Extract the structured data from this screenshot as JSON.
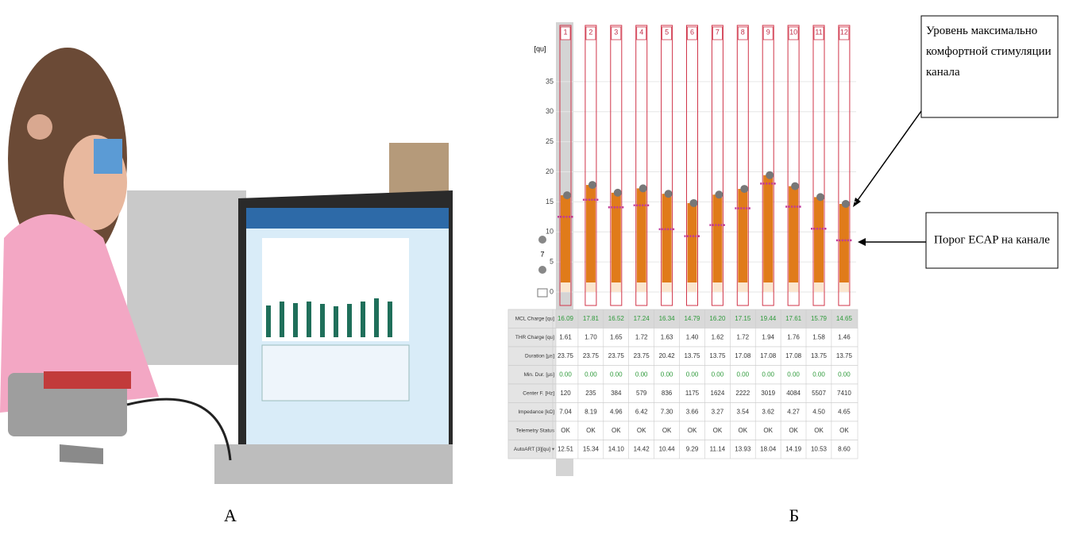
{
  "panels": {
    "left_label": "А",
    "right_label": "Б"
  },
  "annotations": {
    "mcl_note": "Уровень максимально комфортной стимуляции канала",
    "ecap_note": "Порог ECAP на канале"
  },
  "chart_data": {
    "type": "bar",
    "y_label": "[qu]",
    "side_value": "7",
    "categories": [
      "1",
      "2",
      "3",
      "4",
      "5",
      "6",
      "7",
      "8",
      "9",
      "10",
      "11",
      "12"
    ],
    "series": [
      {
        "color": "#e07b1a",
        "values": [
          16.09,
          17.81,
          16.52,
          17.24,
          16.34,
          14.79,
          16.2,
          17.15,
          19.44,
          17.61,
          15.79,
          14.65
        ]
      },
      {
        "color": "#c0399a",
        "values": [
          12.51,
          15.34,
          14.1,
          14.42,
          10.44,
          9.29,
          11.14,
          13.93,
          18.04,
          14.19,
          10.53,
          8.6
        ]
      }
    ],
    "ylim": [
      0,
      40
    ],
    "yticks": [
      0,
      5,
      10,
      15,
      20,
      25,
      30,
      35
    ],
    "grid": true
  },
  "table": {
    "rows": [
      {
        "label": "MCL Charge [qu]",
        "cells": [
          "16.09",
          "17.81",
          "16.52",
          "17.24",
          "16.34",
          "14.79",
          "16.20",
          "17.15",
          "19.44",
          "17.61",
          "15.79",
          "14.65"
        ]
      },
      {
        "label": "THR Charge [qu]",
        "cells": [
          "1.61",
          "1.70",
          "1.65",
          "1.72",
          "1.63",
          "1.40",
          "1.62",
          "1.72",
          "1.94",
          "1.76",
          "1.58",
          "1.46"
        ]
      },
      {
        "label": "Duration [µs]",
        "cells": [
          "23.75",
          "23.75",
          "23.75",
          "23.75",
          "20.42",
          "13.75",
          "13.75",
          "17.08",
          "17.08",
          "17.08",
          "13.75",
          "13.75"
        ]
      },
      {
        "label": "Min. Dur. [µs]",
        "cells": [
          "0.00",
          "0.00",
          "0.00",
          "0.00",
          "0.00",
          "0.00",
          "0.00",
          "0.00",
          "0.00",
          "0.00",
          "0.00",
          "0.00"
        ]
      },
      {
        "label": "Center F. [Hz]",
        "cells": [
          "120",
          "235",
          "384",
          "579",
          "836",
          "1175",
          "1624",
          "2222",
          "3019",
          "4084",
          "5507",
          "7410"
        ]
      },
      {
        "label": "Impedance [kΩ]",
        "cells": [
          "7.04",
          "8.19",
          "4.96",
          "6.42",
          "7.30",
          "3.66",
          "3.27",
          "3.54",
          "3.62",
          "4.27",
          "4.50",
          "4.65"
        ]
      },
      {
        "label": "Telemetry Status",
        "cells": [
          "OK",
          "OK",
          "OK",
          "OK",
          "OK",
          "OK",
          "OK",
          "OK",
          "OK",
          "OK",
          "OK",
          "OK"
        ]
      },
      {
        "label": "AutoART [3][qu] ▾",
        "cells": [
          "12.51",
          "15.34",
          "14.10",
          "14.42",
          "10.44",
          "9.29",
          "11.14",
          "13.93",
          "18.04",
          "14.19",
          "10.53",
          "8.60"
        ]
      }
    ]
  }
}
